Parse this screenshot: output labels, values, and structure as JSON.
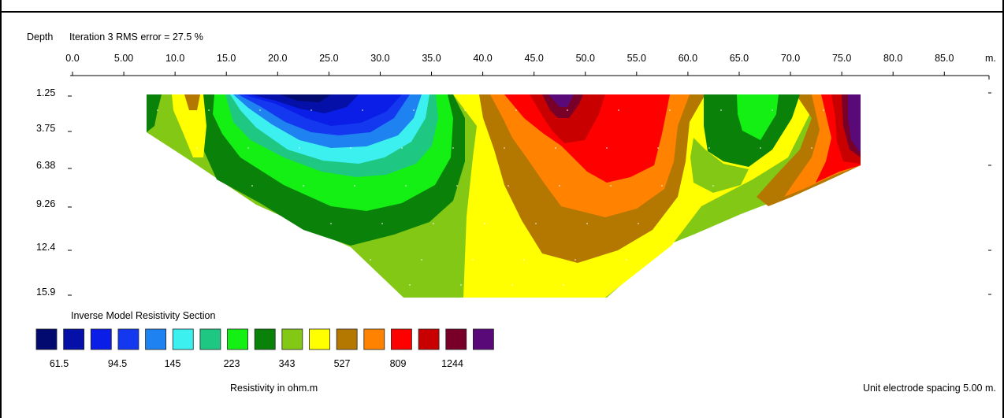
{
  "chart_data": {
    "type": "heatmap",
    "title": "Iteration 3 RMS error = 27.5 %",
    "depth_label": "Depth",
    "distance_unit": "m.",
    "x_ticks": [
      "0.0",
      "5.00",
      "10.0",
      "15.0",
      "20.0",
      "25.0",
      "30.0",
      "35.0",
      "40.0",
      "45.0",
      "50.0",
      "55.0",
      "60.0",
      "65.0",
      "70.0",
      "75.0",
      "80.0",
      "85.0"
    ],
    "y_ticks": [
      "1.25",
      "3.75",
      "6.38",
      "9.26",
      "12.4",
      "15.9"
    ],
    "xlim": [
      0,
      90
    ],
    "legend_title": "Inverse Model Resistivity Section",
    "legend_colors": [
      "#020a6f",
      "#0410a8",
      "#0a1ee8",
      "#1438f0",
      "#1e82f0",
      "#3cf0f0",
      "#1ec882",
      "#14f014",
      "#0a820a",
      "#82c814",
      "#ffff00",
      "#b47800",
      "#ff8200",
      "#ff0000",
      "#c80000",
      "#780028",
      "#5a0a78"
    ],
    "legend_values": [
      "61.5",
      "94.5",
      "145",
      "223",
      "343",
      "527",
      "809",
      "1244"
    ],
    "legend_unit": "Resistivity in ohm.m",
    "spacing_note": "Unit electrode spacing 5.00 m."
  }
}
